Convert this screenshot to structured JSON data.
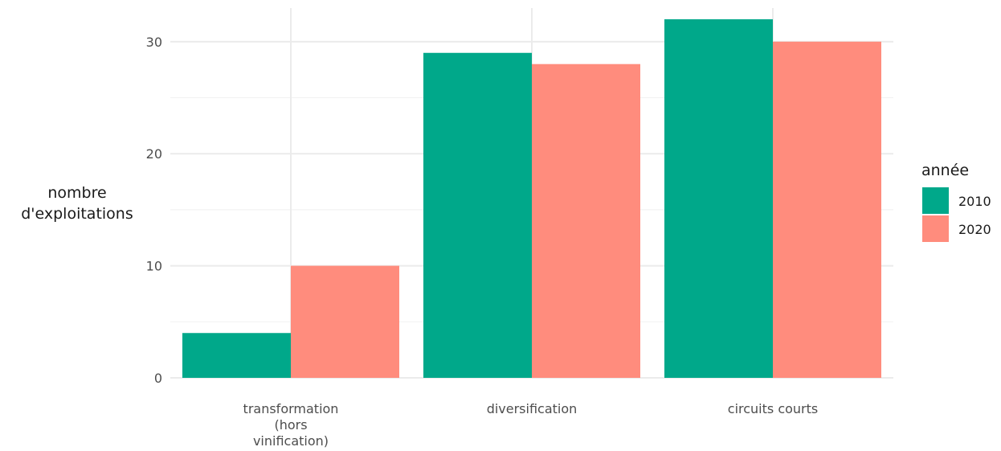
{
  "chart_data": {
    "type": "bar",
    "categories": [
      [
        "transformation",
        "(hors",
        "vinification)"
      ],
      [
        "diversification"
      ],
      [
        "circuits courts"
      ]
    ],
    "series": [
      {
        "name": "2010",
        "color": "#00a88a",
        "values": [
          4,
          29,
          32
        ]
      },
      {
        "name": "2020",
        "color": "#ff8c7d",
        "values": [
          10,
          28,
          30
        ]
      }
    ],
    "ylabel": [
      "nombre",
      "d'exploitations"
    ],
    "xlabel": "",
    "ylim": [
      0,
      33
    ],
    "yticks": [
      0,
      10,
      20,
      30
    ],
    "grid": true,
    "legend": {
      "title": "année",
      "position": "right"
    }
  }
}
